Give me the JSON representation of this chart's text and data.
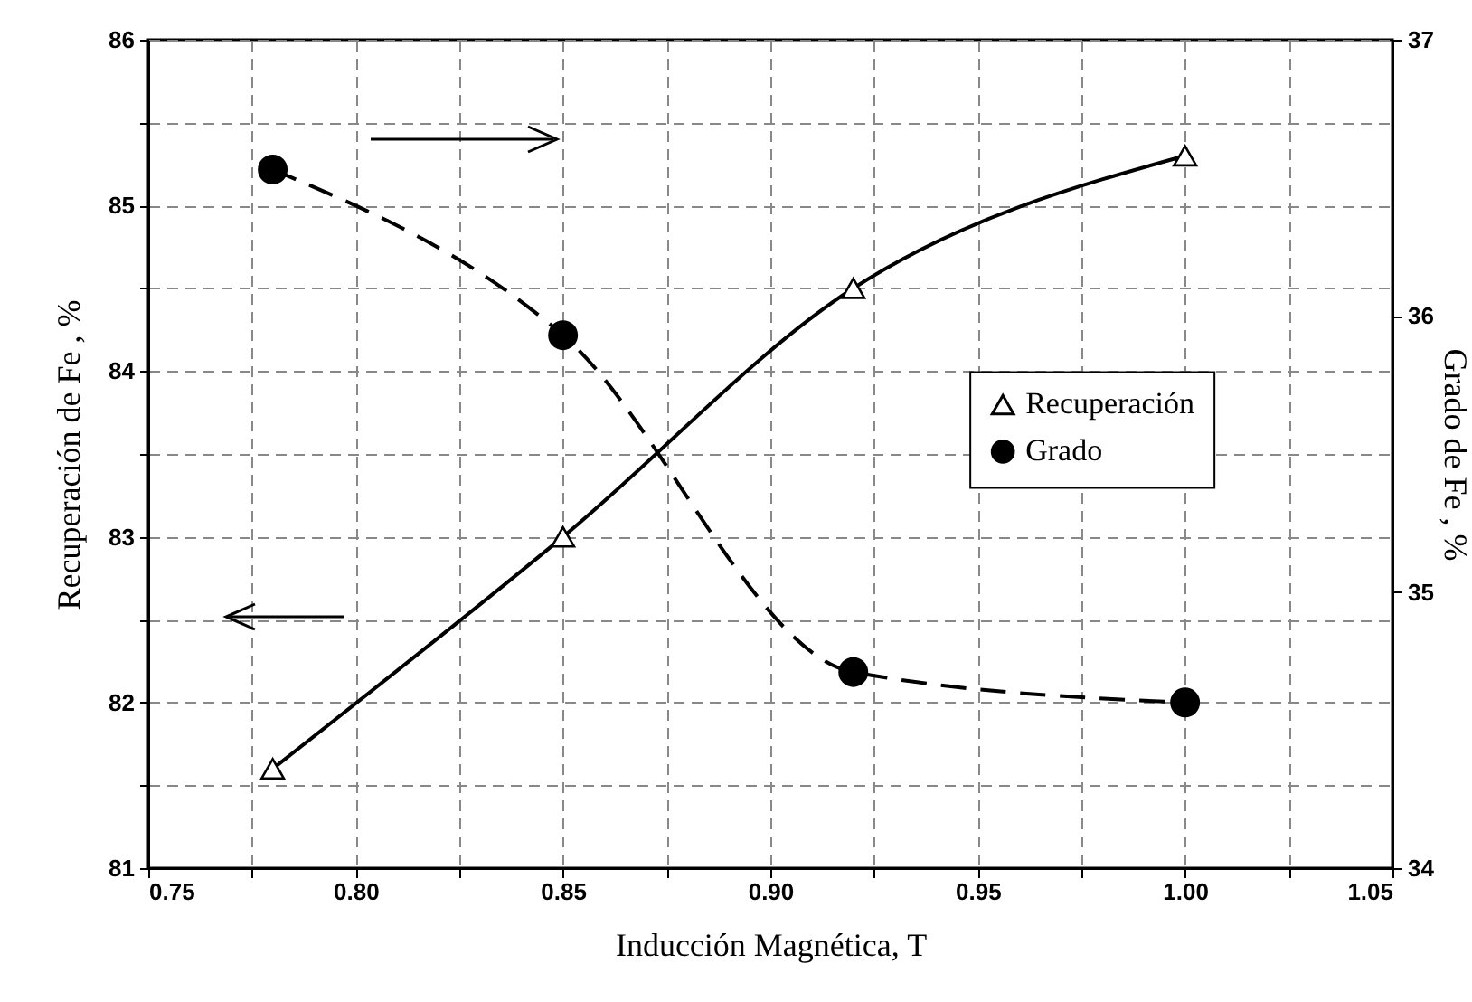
{
  "chart_data": {
    "type": "line",
    "xlabel": "Inducción Magnética, T",
    "ylabel": "Recuperación de Fe , %",
    "y2label": "Grado  de Fe , %",
    "xlim": [
      0.75,
      1.05
    ],
    "xticks": [
      0.75,
      {
        "value": 0.775,
        "label": null
      },
      {
        "value": 0.8,
        "label": "0.80"
      },
      {
        "value": 0.825,
        "label": null
      },
      0.85,
      {
        "value": 0.875,
        "label": null
      },
      {
        "value": 0.9,
        "label": "0.90"
      },
      {
        "value": 0.925,
        "label": null
      },
      0.95,
      {
        "value": 0.975,
        "label": null
      },
      {
        "value": 1.0,
        "label": "1.00"
      },
      {
        "value": 1.025,
        "label": null
      },
      1.05
    ],
    "ylim": [
      81,
      86
    ],
    "yticks": [
      81,
      {
        "value": 81.5,
        "label": null
      },
      82,
      {
        "value": 82.5,
        "label": null
      },
      83,
      {
        "value": 83.5,
        "label": null
      },
      84,
      {
        "value": 84.5,
        "label": null
      },
      85,
      {
        "value": 85.5,
        "label": null
      },
      86
    ],
    "y2lim": [
      34,
      37
    ],
    "y2ticks": [
      34,
      35,
      36,
      37
    ],
    "x": [
      0.78,
      0.85,
      0.92,
      1.0
    ],
    "series": [
      {
        "name": "Recuperación",
        "color": "#000000",
        "values": [
          81.6,
          83.0,
          84.5,
          85.3
        ],
        "marker": "triangle",
        "line_style": "solid"
      },
      {
        "name": "Grado",
        "color": "#000000",
        "values": [
          36.53,
          35.93,
          34.71,
          34.6
        ],
        "marker": "circle",
        "line_style": "dashed",
        "axis": "y2"
      }
    ],
    "grid": true,
    "legend": "right"
  }
}
